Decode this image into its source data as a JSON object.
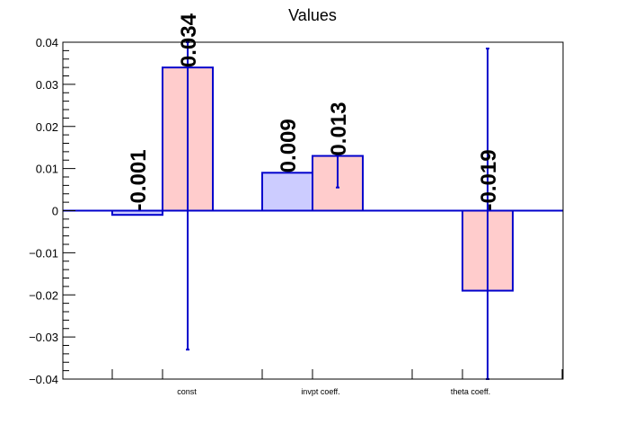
{
  "chart_data": {
    "type": "bar",
    "title": "Values",
    "xlabel": "",
    "ylabel": "",
    "categories": [
      "const",
      "invpt coeff.",
      "theta coeff."
    ],
    "ylim": [
      -0.04,
      0.04
    ],
    "yticks": [
      0.04,
      0.03,
      0.02,
      0.01,
      0,
      -0.01,
      -0.02,
      -0.03,
      -0.04
    ],
    "ytick_labels": [
      "0.04",
      "0.03",
      "0.02",
      "0.01",
      "0",
      "−0.01",
      "−0.02",
      "−0.03",
      "−0.04"
    ],
    "grid": false,
    "legend": "none",
    "series": [
      {
        "color": "#ccccff",
        "edge_color": "#0000cc",
        "values": [
          -0.001,
          0.009,
          null
        ],
        "labels": [
          "-0.001",
          "0.009",
          ""
        ],
        "errors": [
          null,
          null,
          null
        ]
      },
      {
        "color": "#ffcccc",
        "edge_color": "#0000cc",
        "values": [
          0.034,
          0.013,
          -0.019
        ],
        "labels": [
          "0.034",
          "0.013",
          "-0.019"
        ],
        "errors": [
          {
            "low": -0.033,
            "high": 0.04
          },
          {
            "low": 0.0055,
            "high": 0.013
          },
          {
            "low": -0.04,
            "high": 0.0385
          }
        ]
      }
    ]
  }
}
